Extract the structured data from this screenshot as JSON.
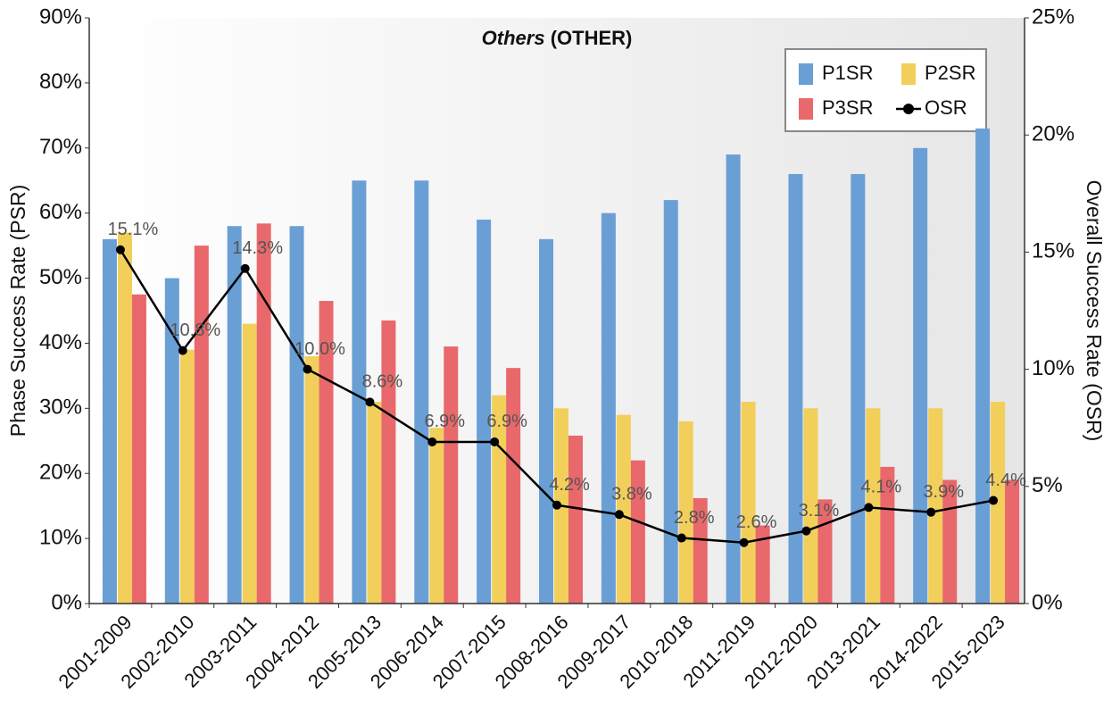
{
  "chart_data": {
    "type": "bar_line",
    "title": [
      "Others",
      "(OTHER)"
    ],
    "y_label": "Phase Success Rate (PSR)",
    "y2_label": "Overall Success Rate (OSR)",
    "categories": [
      "2001-2009",
      "2002-2010",
      "2003-2011",
      "2004-2012",
      "2005-2013",
      "2006-2014",
      "2007-2015",
      "2008-2016",
      "2009-2017",
      "2010-2018",
      "2011-2019",
      "2012-2020",
      "2013-2021",
      "2014-2022",
      "2015-2023"
    ],
    "series": [
      {
        "name": "P1SR",
        "type": "bar",
        "color": "#6a9fd6",
        "values": [
          56,
          50,
          58,
          58,
          65,
          65,
          59,
          56,
          60,
          62,
          69,
          66,
          66,
          70,
          73
        ]
      },
      {
        "name": "P2SR",
        "type": "bar",
        "color": "#f2cf5b",
        "values": [
          57,
          39,
          43,
          38,
          31,
          27,
          32,
          30,
          29,
          28,
          31,
          30,
          30,
          30,
          31
        ]
      },
      {
        "name": "P3SR",
        "type": "bar",
        "color": "#e8686b",
        "values": [
          47.5,
          55,
          58.4,
          46.5,
          43.5,
          39.5,
          36.2,
          25.8,
          22,
          16.2,
          12,
          16,
          21,
          19,
          19
        ]
      },
      {
        "name": "OSR",
        "type": "line",
        "axis": "y2",
        "color": "#000000",
        "values": [
          15.1,
          10.8,
          14.3,
          10.0,
          8.6,
          6.9,
          6.9,
          4.2,
          3.8,
          2.8,
          2.6,
          3.1,
          4.1,
          3.9,
          4.4
        ],
        "value_labels": [
          "15.1%",
          "10.8%",
          "14.3%",
          "10.0%",
          "8.6%",
          "6.9%",
          "6.9%",
          "4.2%",
          "3.8%",
          "2.8%",
          "2.6%",
          "3.1%",
          "4.1%",
          "3.9%",
          "4.4%"
        ]
      }
    ],
    "ylim": [
      0,
      90
    ],
    "yticks": [
      {
        "value": 0,
        "label": "0%"
      },
      {
        "value": 10,
        "label": "10%"
      },
      {
        "value": 20,
        "label": "20%"
      },
      {
        "value": 30,
        "label": "30%"
      },
      {
        "value": 40,
        "label": "40%"
      },
      {
        "value": 50,
        "label": "50%"
      },
      {
        "value": 60,
        "label": "60%"
      },
      {
        "value": 70,
        "label": "70%"
      },
      {
        "value": 80,
        "label": "80%"
      },
      {
        "value": 90,
        "label": "90%"
      }
    ],
    "y2lim": [
      0,
      25
    ],
    "y2ticks": [
      {
        "value": 0,
        "label": "0%"
      },
      {
        "value": 5,
        "label": "5%"
      },
      {
        "value": 10,
        "label": "10%"
      },
      {
        "value": 15,
        "label": "15%"
      },
      {
        "value": 20,
        "label": "20%"
      },
      {
        "value": 25,
        "label": "25%"
      }
    ],
    "legend": "upper right"
  }
}
